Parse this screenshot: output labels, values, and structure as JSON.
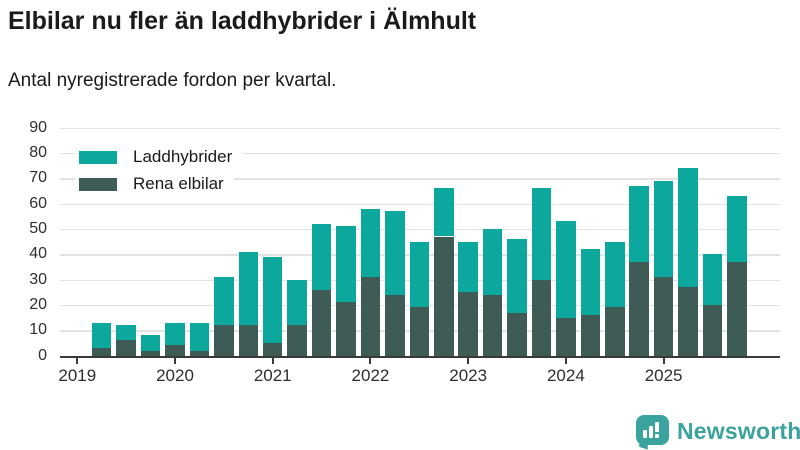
{
  "header": {
    "title": "Elbilar nu fler än laddhybrider i Älmhult",
    "subtitle": "Antal nyregistrerade fordon per kvartal."
  },
  "colors": {
    "hybrid_teal": "#0ca89d",
    "ev_dark": "#3e5b55",
    "gridline": "#e3e3e3",
    "axis": "#3a3a3a",
    "text": "#1a1a1a",
    "brand_teal": "#3aa39d"
  },
  "chart_data": {
    "type": "bar",
    "stacked": true,
    "x": [
      "2019 Q1",
      "2019 Q2",
      "2019 Q3",
      "2019 Q4",
      "2020 Q1",
      "2020 Q2",
      "2020 Q3",
      "2020 Q4",
      "2021 Q1",
      "2021 Q2",
      "2021 Q3",
      "2021 Q4",
      "2022 Q1",
      "2022 Q2",
      "2022 Q3",
      "2022 Q4",
      "2023 Q1",
      "2023 Q2",
      "2023 Q3",
      "2023 Q4",
      "2024 Q1",
      "2024 Q2",
      "2024 Q3",
      "2024 Q4",
      "2025 Q1",
      "2025 Q2",
      "2025 Q3",
      "2025 Q4"
    ],
    "x_tick_labels": [
      "2019",
      "2020",
      "2021",
      "2022",
      "2023",
      "2024",
      "2025"
    ],
    "series": [
      {
        "name": "Laddhybrider",
        "color": "#0ca89d",
        "position": "top",
        "values": [
          0,
          10,
          6,
          6,
          9,
          11,
          19,
          29,
          34,
          18,
          26,
          30,
          27,
          33,
          26,
          19,
          20,
          26,
          29,
          36,
          38,
          26,
          26,
          30,
          38,
          47,
          20,
          26
        ]
      },
      {
        "name": "Rena elbilar",
        "color": "#3e5b55",
        "position": "bottom",
        "values": [
          0,
          3,
          6,
          2,
          4,
          2,
          12,
          12,
          5,
          12,
          26,
          21,
          31,
          24,
          19,
          47,
          25,
          24,
          17,
          30,
          15,
          16,
          19,
          37,
          31,
          27,
          20,
          37
        ]
      }
    ],
    "totals": [
      0,
      13,
      12,
      8,
      13,
      13,
      31,
      41,
      39,
      30,
      52,
      51,
      58,
      57,
      45,
      66,
      45,
      50,
      46,
      66,
      53,
      42,
      45,
      67,
      69,
      74,
      40,
      63
    ],
    "ylim": [
      0,
      90
    ],
    "yticks": [
      0,
      10,
      20,
      30,
      40,
      50,
      60,
      70,
      80,
      90
    ],
    "grid": true,
    "legend_position": "top-left-inside"
  },
  "footer": {
    "brand": "Newsworthy"
  }
}
